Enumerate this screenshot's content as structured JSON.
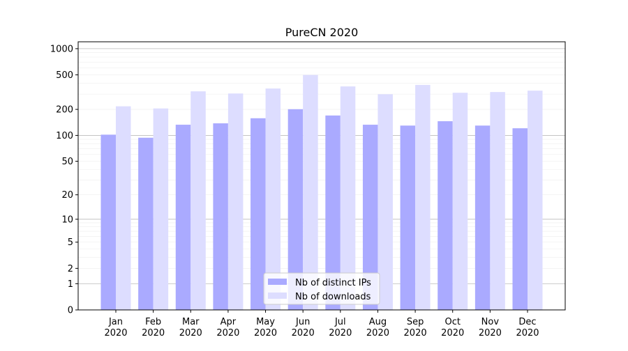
{
  "chart_data": {
    "type": "bar",
    "title": "PureCN 2020",
    "xlabel": "",
    "ylabel": "",
    "yscale": "log(value+1)",
    "ylim": [
      0,
      1200
    ],
    "yticks": [
      0,
      1,
      2,
      5,
      10,
      20,
      50,
      100,
      200,
      500,
      1000
    ],
    "grid": true,
    "legend_position": "lower-center",
    "categories": [
      "Jan\n2020",
      "Feb\n2020",
      "Mar\n2020",
      "Apr\n2020",
      "May\n2020",
      "Jun\n2020",
      "Jul\n2020",
      "Aug\n2020",
      "Sep\n2020",
      "Oct\n2020",
      "Nov\n2020",
      "Dec\n2020"
    ],
    "series": [
      {
        "name": "Nb of distinct IPs",
        "color": "#aaaaff",
        "values": [
          102,
          94,
          133,
          138,
          158,
          201,
          170,
          133,
          130,
          146,
          130,
          121
        ]
      },
      {
        "name": "Nb of downloads",
        "color": "#ddddff",
        "values": [
          217,
          205,
          323,
          305,
          348,
          498,
          368,
          299,
          383,
          311,
          317,
          329
        ]
      }
    ]
  }
}
